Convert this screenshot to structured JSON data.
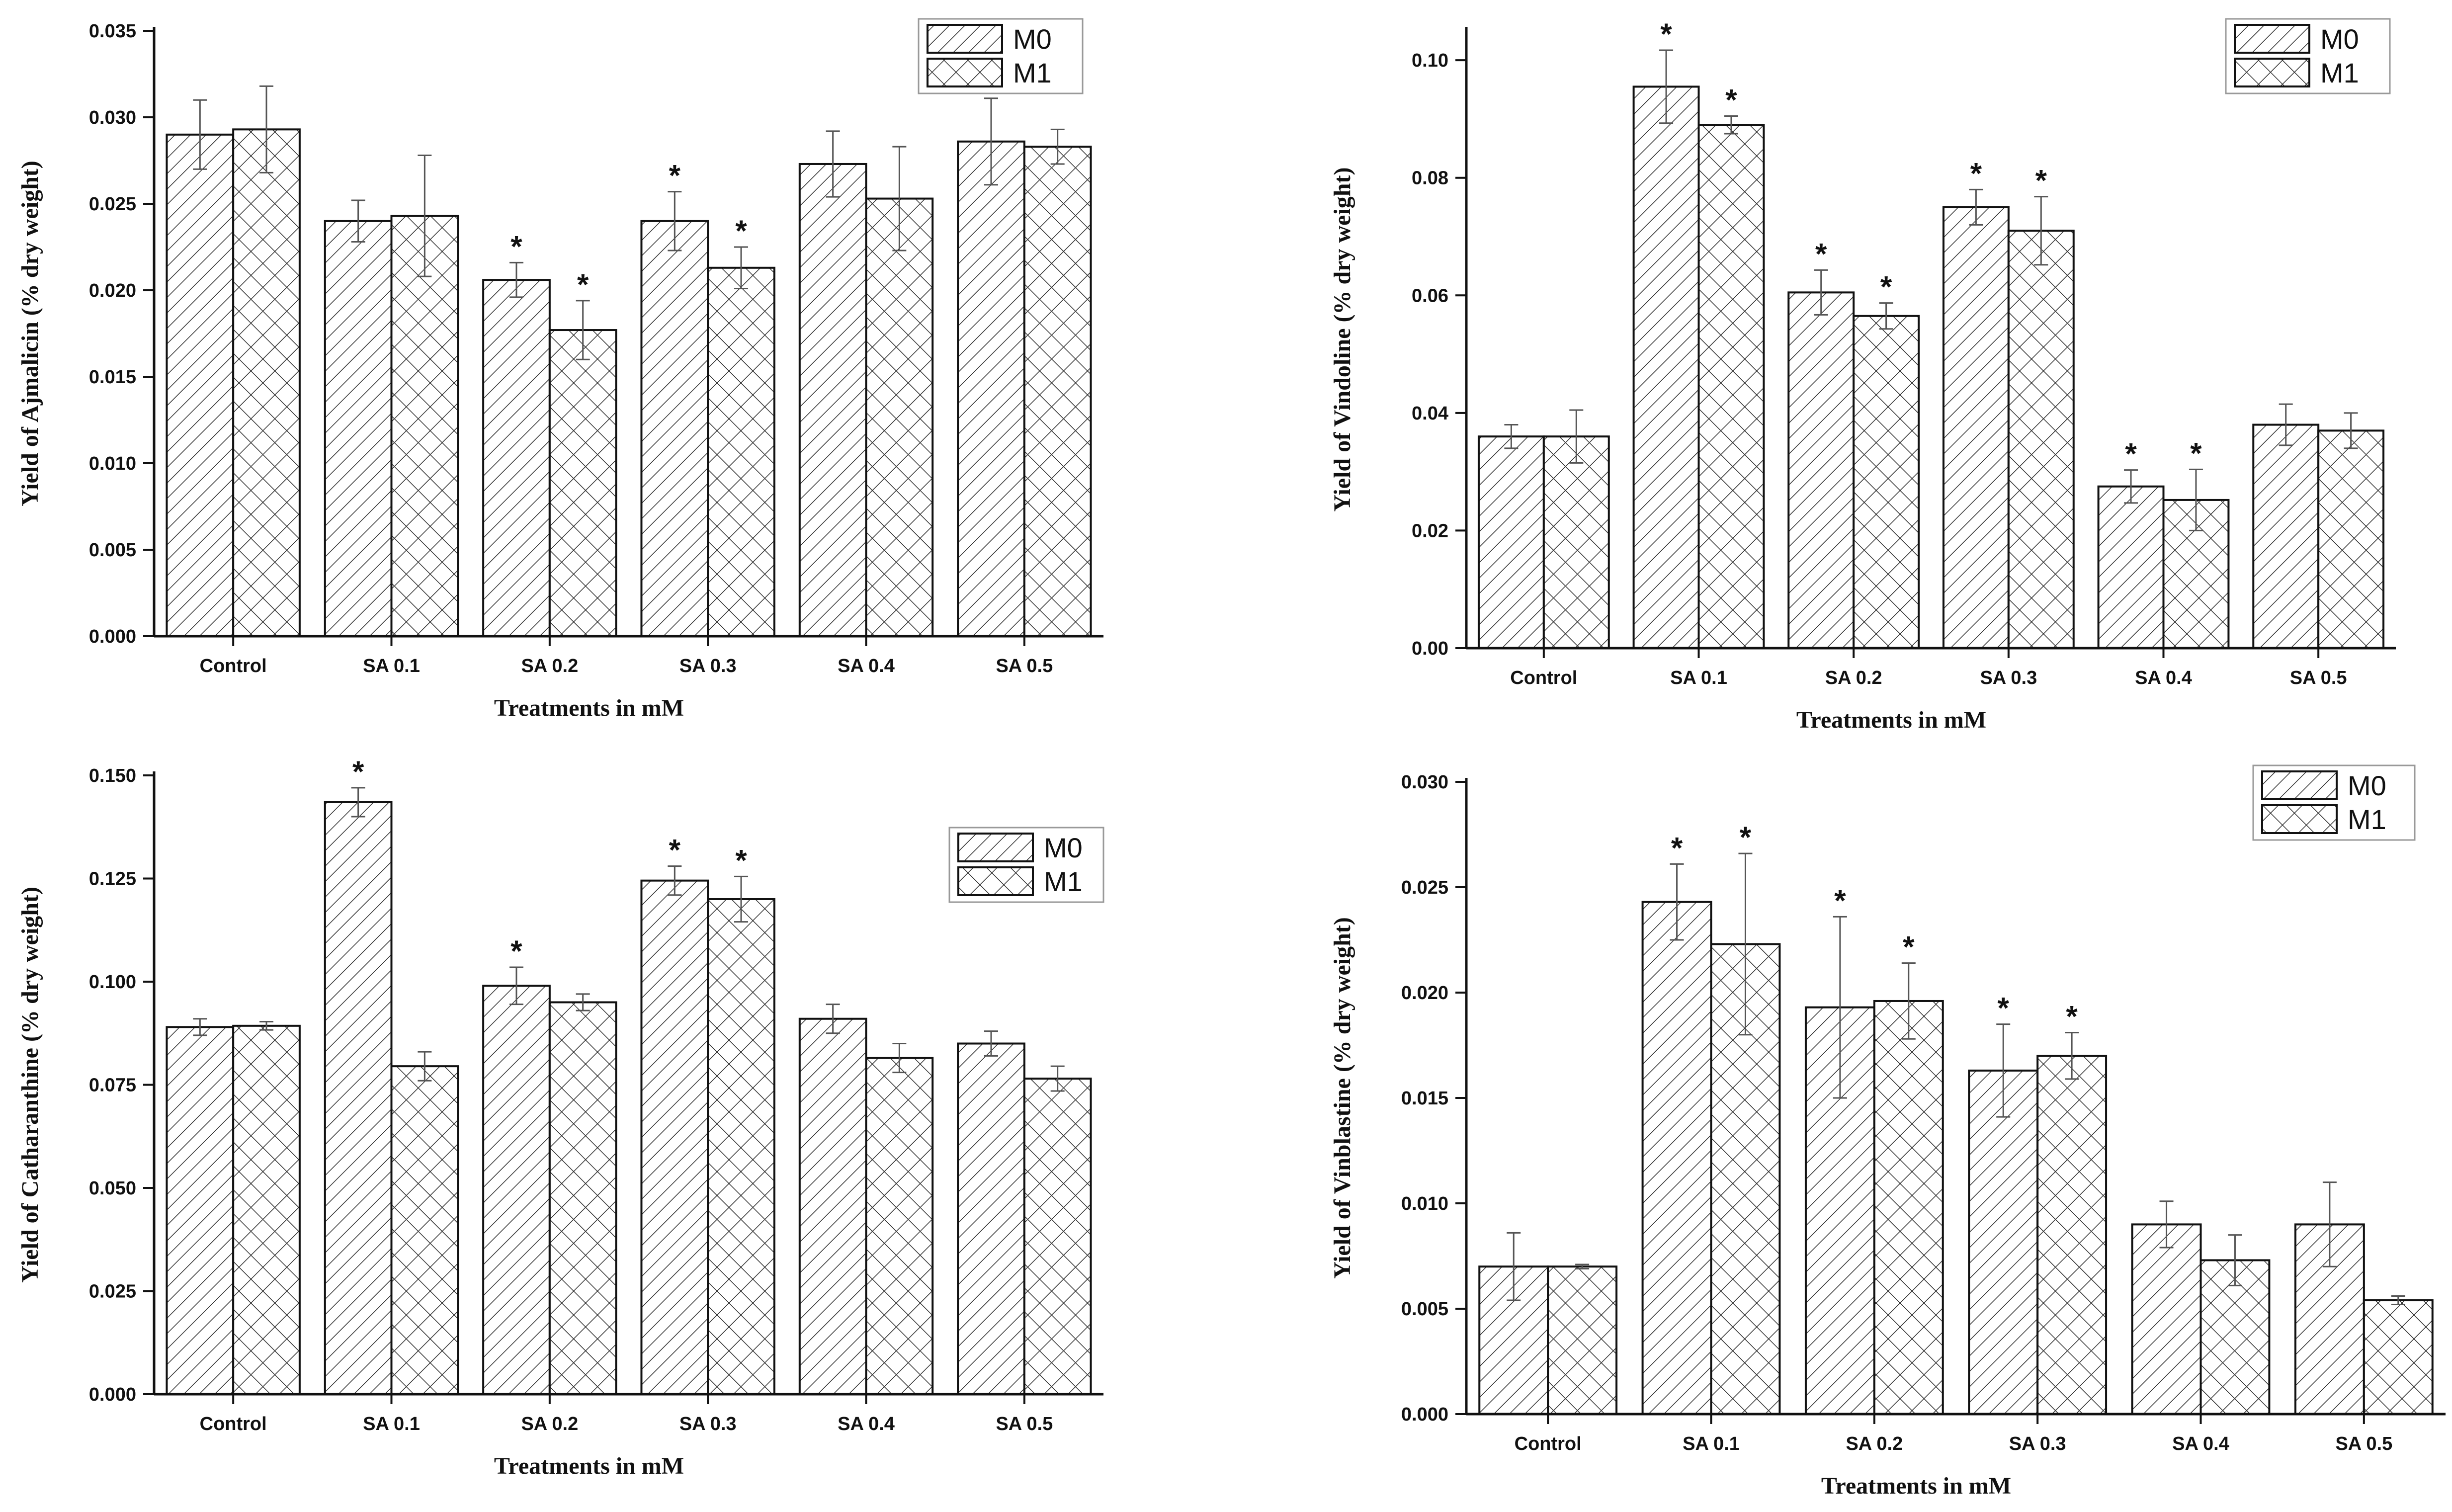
{
  "chart_data": [
    {
      "type": "bar",
      "title": "",
      "xlabel": "Treatments in mM",
      "ylabel": "Yield of Ajmalicin (% dry weight)",
      "categories": [
        "Control",
        "SA 0.1",
        "SA 0.2",
        "SA 0.3",
        "SA 0.4",
        "SA 0.5"
      ],
      "ylim": [
        0,
        0.035
      ],
      "yticks": [
        "0.000",
        "0.005",
        "0.010",
        "0.015",
        "0.020",
        "0.025",
        "0.030",
        "0.035"
      ],
      "series": [
        {
          "name": "M0",
          "pattern": "diagonal",
          "values": [
            0.029,
            0.024,
            0.0206,
            0.024,
            0.0273,
            0.0286
          ],
          "errors": [
            0.002,
            0.0012,
            0.001,
            0.0017,
            0.0019,
            0.0025
          ],
          "significant": [
            false,
            false,
            true,
            true,
            false,
            false
          ]
        },
        {
          "name": "M1",
          "pattern": "crosshatch",
          "values": [
            0.0293,
            0.0243,
            0.0177,
            0.0213,
            0.0253,
            0.0283
          ],
          "errors": [
            0.0025,
            0.0035,
            0.0017,
            0.0012,
            0.003,
            0.001
          ],
          "significant": [
            false,
            false,
            true,
            true,
            false,
            false
          ]
        }
      ],
      "legend": "top-right",
      "significance_marker": "*"
    },
    {
      "type": "bar",
      "title": "",
      "xlabel": "Treatments in mM",
      "ylabel": "Yield of Vindoline (% dry weight)",
      "categories": [
        "Control",
        "SA 0.1",
        "SA 0.2",
        "SA 0.3",
        "SA 0.4",
        "SA 0.5"
      ],
      "ylim": [
        0,
        0.105
      ],
      "yticks": [
        "0.00",
        "0.02",
        "0.04",
        "0.06",
        "0.08",
        "0.10"
      ],
      "series": [
        {
          "name": "M0",
          "pattern": "diagonal",
          "values": [
            0.036,
            0.0955,
            0.0605,
            0.075,
            0.0275,
            0.038
          ],
          "errors": [
            0.002,
            0.0062,
            0.0038,
            0.003,
            0.0028,
            0.0035
          ],
          "significant": [
            false,
            true,
            true,
            true,
            true,
            false
          ]
        },
        {
          "name": "M1",
          "pattern": "crosshatch",
          "values": [
            0.036,
            0.089,
            0.0565,
            0.071,
            0.0252,
            0.037
          ],
          "errors": [
            0.0045,
            0.0015,
            0.0022,
            0.0058,
            0.0052,
            0.003
          ],
          "significant": [
            false,
            true,
            true,
            true,
            true,
            false
          ]
        }
      ],
      "legend": "top-right",
      "significance_marker": "*"
    },
    {
      "type": "bar",
      "title": "",
      "xlabel": "Treatments in mM",
      "ylabel": "Yield of Catharanthine (% dry weight)",
      "categories": [
        "Control",
        "SA 0.1",
        "SA 0.2",
        "SA 0.3",
        "SA 0.4",
        "SA 0.5"
      ],
      "ylim": [
        0,
        0.15
      ],
      "yticks": [
        "0.000",
        "0.025",
        "0.050",
        "0.075",
        "0.100",
        "0.125",
        "0.150"
      ],
      "series": [
        {
          "name": "M0",
          "pattern": "diagonal",
          "values": [
            0.089,
            0.1435,
            0.099,
            0.1245,
            0.091,
            0.085
          ],
          "errors": [
            0.002,
            0.0035,
            0.0045,
            0.0035,
            0.0035,
            0.003
          ],
          "significant": [
            false,
            true,
            true,
            true,
            false,
            false
          ]
        },
        {
          "name": "M1",
          "pattern": "crosshatch",
          "values": [
            0.0893,
            0.0795,
            0.095,
            0.12,
            0.0815,
            0.0765
          ],
          "errors": [
            0.001,
            0.0035,
            0.002,
            0.0055,
            0.0035,
            0.003
          ],
          "significant": [
            false,
            false,
            false,
            true,
            false,
            false
          ]
        }
      ],
      "legend": "top-right",
      "significance_marker": "*"
    },
    {
      "type": "bar",
      "title": "",
      "xlabel": "Treatments in mM",
      "ylabel": "Yield of Vinblastine (% dry weight)",
      "categories": [
        "Control",
        "SA 0.1",
        "SA 0.2",
        "SA 0.3",
        "SA 0.4",
        "SA 0.5"
      ],
      "ylim": [
        0,
        0.03
      ],
      "yticks": [
        "0.000",
        "0.005",
        "0.010",
        "0.015",
        "0.020",
        "0.025",
        "0.030"
      ],
      "series": [
        {
          "name": "M0",
          "pattern": "diagonal",
          "values": [
            0.007,
            0.0243,
            0.0193,
            0.0163,
            0.009,
            0.009
          ],
          "errors": [
            0.0016,
            0.0018,
            0.0043,
            0.0022,
            0.0011,
            0.002
          ],
          "significant": [
            false,
            true,
            true,
            true,
            false,
            false
          ]
        },
        {
          "name": "M1",
          "pattern": "crosshatch",
          "values": [
            0.007,
            0.0223,
            0.0196,
            0.017,
            0.0073,
            0.0054
          ],
          "errors": [
            0.0001,
            0.0043,
            0.0018,
            0.0011,
            0.0012,
            0.0002
          ],
          "significant": [
            false,
            true,
            true,
            true,
            false,
            false
          ]
        }
      ],
      "legend": "top-right",
      "significance_marker": "*"
    }
  ]
}
